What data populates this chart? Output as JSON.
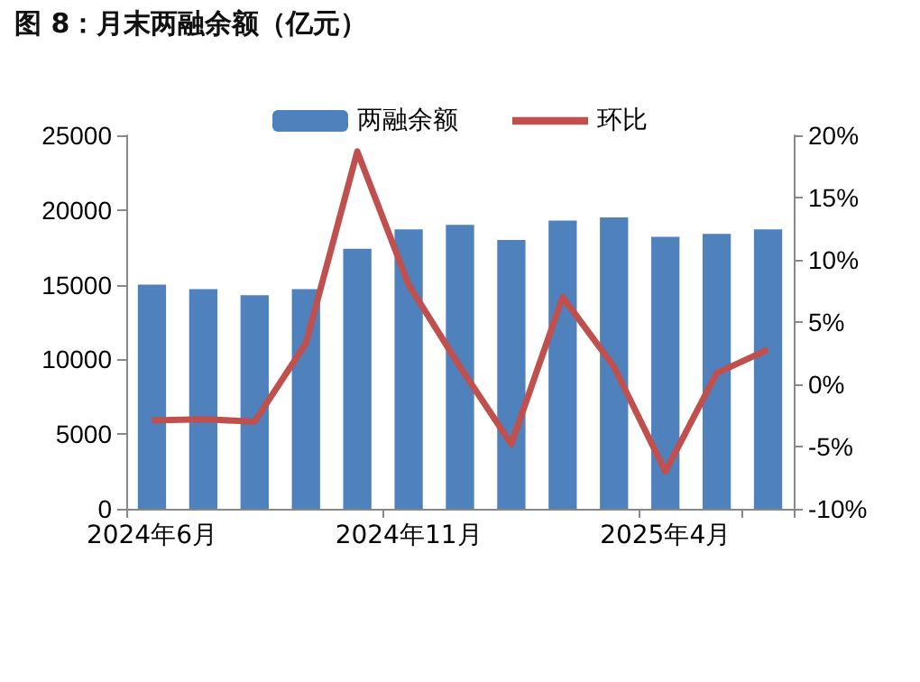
{
  "chart_data": {
    "type": "bar",
    "title": "图 8：月末两融余额（亿元）",
    "categories": [
      "2024年6月",
      null,
      null,
      null,
      null,
      "2024年11月",
      null,
      null,
      null,
      null,
      "2025年4月",
      null,
      null
    ],
    "series": [
      {
        "name": "两融余额",
        "color": "#4f81bd",
        "values": [
          15000,
          14700,
          14300,
          14700,
          17400,
          18700,
          19000,
          18000,
          19300,
          19500,
          18200,
          18400,
          18700
        ]
      },
      {
        "name": "环比",
        "type": "line",
        "axis": "y2",
        "color": "#c0504d",
        "values": [
          -2.9,
          -2.8,
          -3.0,
          3.3,
          18.7,
          8.0,
          1.4,
          -4.8,
          7.0,
          1.4,
          -7.0,
          0.9,
          2.8
        ]
      }
    ],
    "ylim": [
      0,
      25000
    ],
    "yticks": [
      0,
      5000,
      10000,
      15000,
      20000,
      25000
    ],
    "y2lim": [
      -10,
      20
    ],
    "y2ticks": [
      {
        "value": -10,
        "label": "-10%"
      },
      {
        "value": -5,
        "label": "-5%"
      },
      {
        "value": 0,
        "label": "0%"
      },
      {
        "value": 5,
        "label": "5%"
      },
      {
        "value": 10,
        "label": "10%"
      },
      {
        "value": 15,
        "label": "15%"
      },
      {
        "value": 20,
        "label": "20%"
      }
    ],
    "legend": "top",
    "grid": false,
    "marker": "none",
    "line_style": "solid"
  }
}
